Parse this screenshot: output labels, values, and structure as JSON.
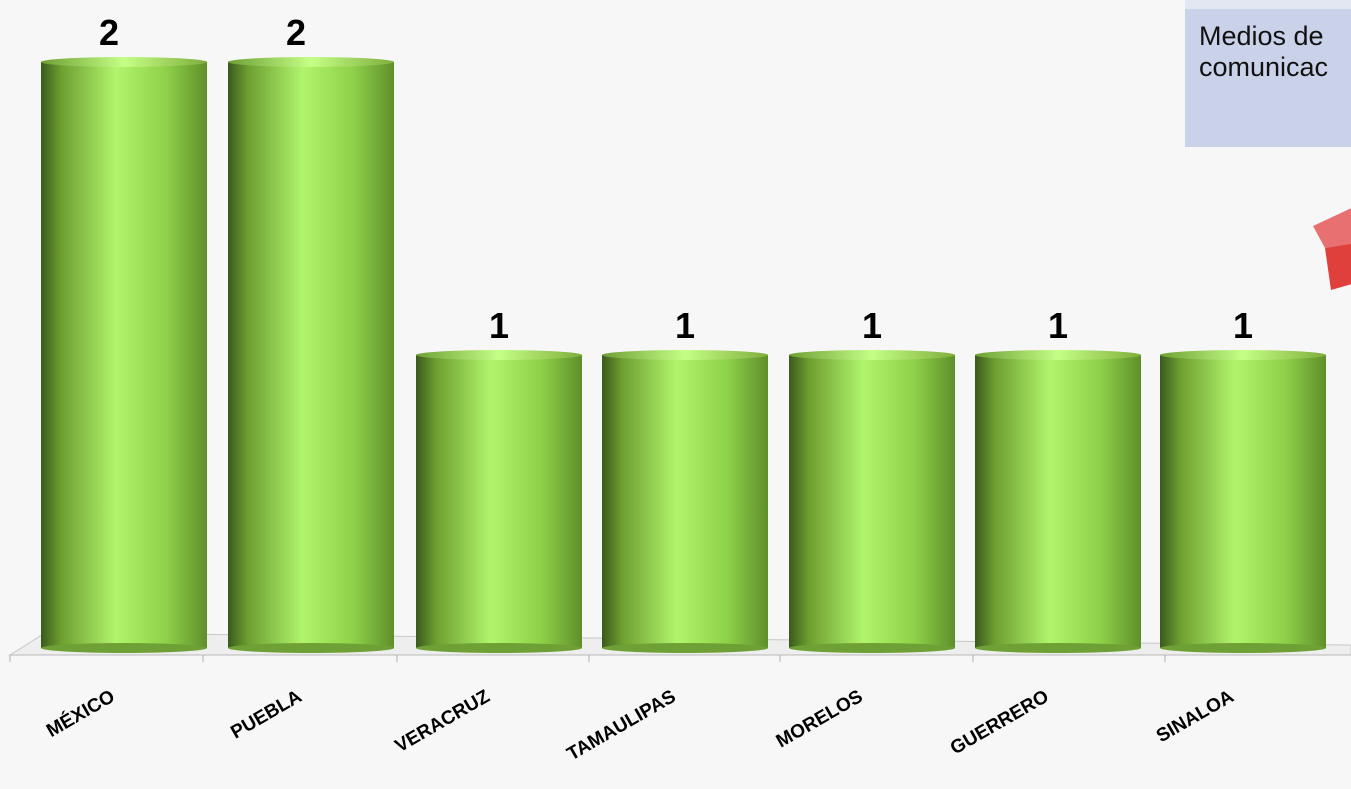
{
  "side_box": {
    "text": "Medios de\ncomunicac"
  },
  "chart_data": {
    "type": "bar",
    "categories": [
      "MÉXICO",
      "PUEBLA",
      "VERACRUZ",
      "TAMAULIPAS",
      "MORELOS",
      "GUERRERO",
      "SINALOA"
    ],
    "values": [
      2,
      2,
      1,
      1,
      1,
      1,
      1
    ],
    "data_labels": [
      "2",
      "2",
      "1",
      "1",
      "1",
      "1",
      "1"
    ],
    "title": "",
    "xlabel": "",
    "ylabel": "",
    "ylim": [
      0,
      2
    ],
    "grid": false,
    "legend": "none",
    "bar_style": "3d-cylinder",
    "colors": {
      "bar_dark": "#3a5a1c",
      "bar_mid": "#6e9e30",
      "bar_light": "#b0f56c",
      "accent_red": "#e0403c"
    }
  }
}
